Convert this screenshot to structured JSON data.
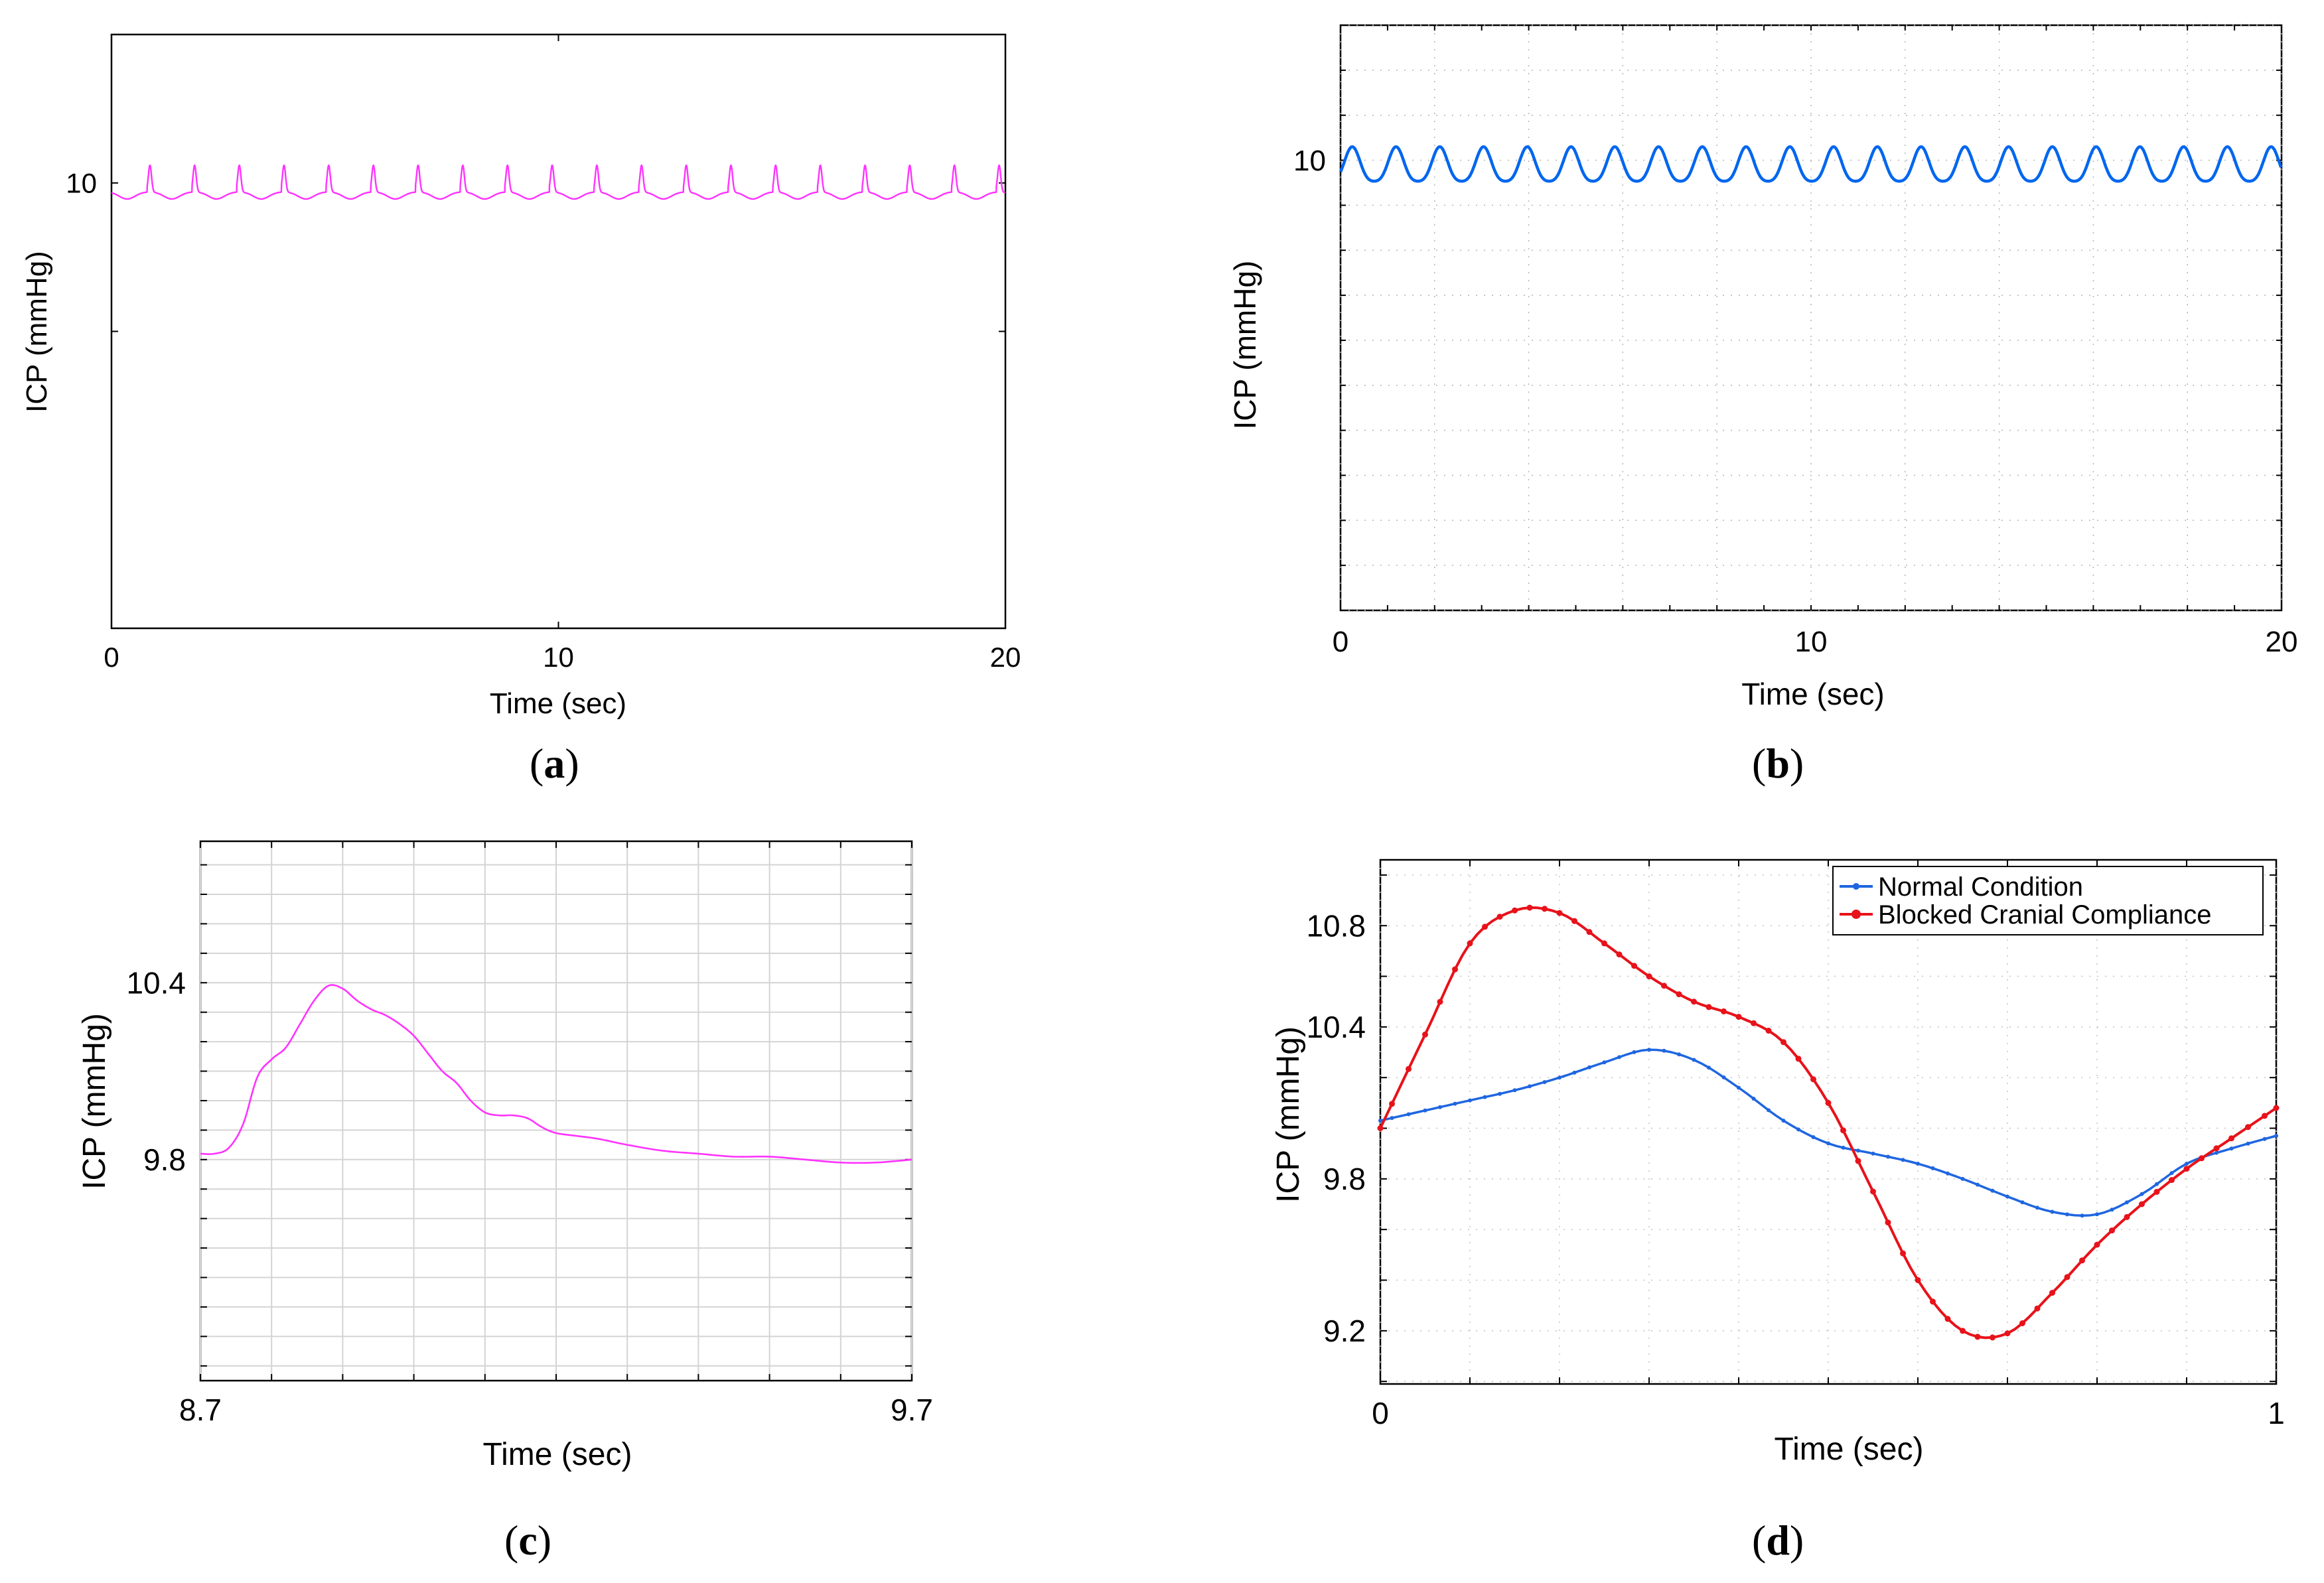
{
  "figure": {
    "panels": [
      "(a)",
      "(b)",
      "(c)",
      "(d)"
    ],
    "panel_labels": {
      "a": {
        "open": "(",
        "letter": "a",
        "close": ")"
      },
      "b": {
        "open": "(",
        "letter": "b",
        "close": ")"
      },
      "c": {
        "open": "(",
        "letter": "c",
        "close": ")"
      },
      "d": {
        "open": "(",
        "letter": "d",
        "close": ")"
      }
    }
  },
  "chart_data": [
    {
      "id": "a",
      "type": "line",
      "xlabel": "Time (sec)",
      "ylabel": "ICP (mmHg)",
      "xlim": [
        0,
        20
      ],
      "ylim": [
        8.5,
        10.5
      ],
      "xticks": [
        0,
        10,
        20
      ],
      "xtick_labels": [
        "0",
        "10",
        "20"
      ],
      "yticks": [
        10
      ],
      "ytick_labels": [
        "10"
      ],
      "ytick_marks": [
        9.5,
        10
      ],
      "grid": false,
      "series": [
        {
          "name": "ICP",
          "color": "#ff33ff",
          "waveform": {
            "period": 1.0,
            "phase": 0.8,
            "baseline": 9.97,
            "peak": 10.06,
            "trough": 9.93
          }
        }
      ]
    },
    {
      "id": "b",
      "type": "line",
      "xlabel": "Time (sec)",
      "ylabel": "ICP (mmHg)",
      "xlim": [
        0,
        20
      ],
      "ylim": [
        5,
        11.5
      ],
      "xticks": [
        0,
        10,
        20
      ],
      "xtick_labels": [
        "0",
        "10",
        "20"
      ],
      "yticks": [
        10
      ],
      "ytick_labels": [
        "10"
      ],
      "grid": true,
      "series": [
        {
          "name": "ICP",
          "color": "#0066ee",
          "waveform": {
            "period": 0.93,
            "phase": 0.25,
            "baseline": 9.97,
            "peak": 10.15,
            "trough": 9.7
          }
        }
      ]
    },
    {
      "id": "c",
      "type": "line",
      "xlabel": "Time (sec)",
      "ylabel": "ICP (mmHg)",
      "xlim": [
        8.7,
        9.7
      ],
      "ylim": [
        9.05,
        10.88
      ],
      "xticks": [
        8.7,
        9.7
      ],
      "xtick_labels": [
        "8.7",
        "9.7"
      ],
      "yticks": [
        9.8,
        10.4
      ],
      "ytick_labels": [
        "9.8",
        "10.4"
      ],
      "grid": true,
      "series": [
        {
          "name": "ICP",
          "color": "#ff33ff",
          "x": [
            8.7,
            8.72,
            8.74,
            8.76,
            8.78,
            8.8,
            8.82,
            8.84,
            8.86,
            8.88,
            8.9,
            8.92,
            8.94,
            8.96,
            8.98,
            9.0,
            9.02,
            9.04,
            9.06,
            9.08,
            9.1,
            9.12,
            9.14,
            9.16,
            9.18,
            9.2,
            9.23,
            9.26,
            9.3,
            9.35,
            9.4,
            9.45,
            9.5,
            9.55,
            9.6,
            9.65,
            9.7
          ],
          "y": [
            9.82,
            9.82,
            9.84,
            9.92,
            10.08,
            10.14,
            10.18,
            10.26,
            10.34,
            10.39,
            10.38,
            10.34,
            10.31,
            10.29,
            10.26,
            10.22,
            10.16,
            10.1,
            10.06,
            10.0,
            9.96,
            9.95,
            9.95,
            9.94,
            9.91,
            9.89,
            9.88,
            9.87,
            9.85,
            9.83,
            9.82,
            9.81,
            9.81,
            9.8,
            9.79,
            9.79,
            9.8
          ]
        }
      ]
    },
    {
      "id": "d",
      "type": "line",
      "xlabel": "Time (sec)",
      "ylabel": "ICP (mmHg)",
      "xlim": [
        0,
        1
      ],
      "ylim": [
        8.99,
        11.06
      ],
      "xticks": [
        0,
        1
      ],
      "xtick_labels": [
        "0",
        "1"
      ],
      "yticks": [
        9.2,
        9.8,
        10.4,
        10.8
      ],
      "ytick_labels": [
        "9.2",
        "9.8",
        "10.4",
        "10.8"
      ],
      "grid": true,
      "legend": {
        "location": "top-right",
        "entries": [
          "Normal Condition",
          "Blocked Cranial Compliance"
        ]
      },
      "series": [
        {
          "name": "Normal Condition",
          "color": "#1f66e0",
          "x": [
            0,
            0.05,
            0.1,
            0.15,
            0.2,
            0.25,
            0.3,
            0.35,
            0.4,
            0.45,
            0.5,
            0.55,
            0.6,
            0.65,
            0.7,
            0.75,
            0.8,
            0.85,
            0.9,
            0.95,
            1.0
          ],
          "y": [
            10.03,
            10.07,
            10.11,
            10.15,
            10.2,
            10.26,
            10.31,
            10.27,
            10.16,
            10.03,
            9.94,
            9.9,
            9.86,
            9.8,
            9.73,
            9.67,
            9.66,
            9.74,
            9.86,
            9.92,
            9.97
          ]
        },
        {
          "name": "Blocked Cranial Compliance",
          "color": "#e8121a",
          "x": [
            0,
            0.05,
            0.1,
            0.15,
            0.2,
            0.25,
            0.3,
            0.35,
            0.4,
            0.45,
            0.5,
            0.55,
            0.6,
            0.65,
            0.7,
            0.75,
            0.8,
            0.85,
            0.9,
            0.95,
            1.0
          ],
          "y": [
            10.0,
            10.37,
            10.73,
            10.86,
            10.85,
            10.73,
            10.6,
            10.5,
            10.44,
            10.34,
            10.1,
            9.75,
            9.4,
            9.2,
            9.19,
            9.35,
            9.54,
            9.7,
            9.84,
            9.96,
            10.08
          ]
        }
      ]
    }
  ]
}
